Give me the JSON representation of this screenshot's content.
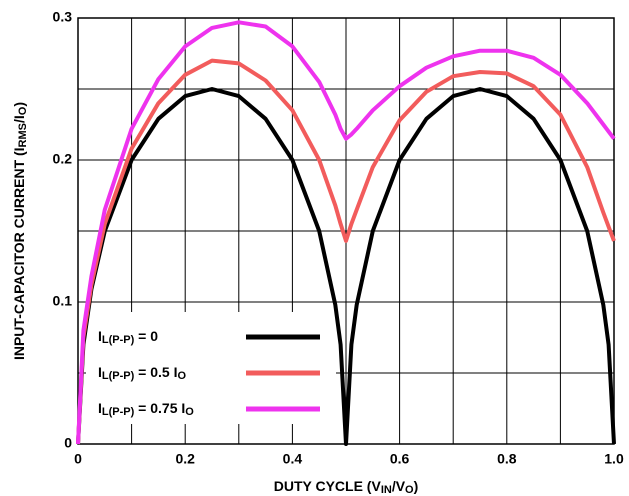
{
  "chart_data": {
    "type": "line",
    "xlabel": [
      "DUTY CYCLE (V",
      "IN",
      "/V",
      "O",
      ")"
    ],
    "ylabel": [
      "INPUT-CAPACITOR CURRENT (I",
      "RMS",
      "/I",
      "O",
      ")"
    ],
    "x": [
      0,
      0.01,
      0.025,
      0.05,
      0.1,
      0.15,
      0.2,
      0.25,
      0.3,
      0.35,
      0.4,
      0.45,
      0.48,
      0.49,
      0.5,
      0.51,
      0.52,
      0.55,
      0.6,
      0.65,
      0.7,
      0.75,
      0.8,
      0.85,
      0.9,
      0.95,
      0.98,
      0.99,
      1.0
    ],
    "series": [
      {
        "name": [
          "I",
          "L(P-P)",
          " = 0"
        ],
        "color": "#000000",
        "values": [
          0,
          0.07,
          0.109,
          0.15,
          0.2,
          0.229,
          0.245,
          0.25,
          0.245,
          0.229,
          0.2,
          0.15,
          0.098,
          0.07,
          0,
          0.07,
          0.098,
          0.15,
          0.2,
          0.229,
          0.245,
          0.25,
          0.245,
          0.229,
          0.2,
          0.15,
          0.098,
          0.07,
          0
        ]
      },
      {
        "name": [
          "I",
          "L(P-P)",
          " = 0.5 I",
          "O"
        ],
        "color": "#f25c5c",
        "values": [
          0,
          0.075,
          0.112,
          0.155,
          0.208,
          0.24,
          0.26,
          0.27,
          0.268,
          0.256,
          0.235,
          0.2,
          0.168,
          0.155,
          0.143,
          0.155,
          0.165,
          0.195,
          0.228,
          0.248,
          0.259,
          0.262,
          0.261,
          0.252,
          0.232,
          0.195,
          0.163,
          0.153,
          0.143
        ]
      },
      {
        "name": [
          "I",
          "L(P-P)",
          " = 0.75 I",
          "O"
        ],
        "color": "#ee33ee",
        "values": [
          0,
          0.08,
          0.118,
          0.165,
          0.222,
          0.257,
          0.28,
          0.293,
          0.297,
          0.294,
          0.28,
          0.255,
          0.232,
          0.222,
          0.215,
          0.218,
          0.222,
          0.235,
          0.252,
          0.265,
          0.273,
          0.277,
          0.277,
          0.272,
          0.26,
          0.24,
          0.225,
          0.22,
          0.215
        ]
      }
    ],
    "xlim": [
      0,
      1
    ],
    "ylim": [
      0,
      0.3
    ],
    "xticks": [
      0,
      0.2,
      0.4,
      0.6,
      0.8,
      {
        "value": 1,
        "label": "1.0"
      }
    ],
    "yticks": [
      0,
      0.1,
      0.2,
      0.3
    ],
    "xminor": [
      0.1,
      0.3,
      0.5,
      0.7,
      0.9
    ],
    "yminor": [
      0.05,
      0.15,
      0.25
    ],
    "grid": true,
    "legend": "lower left"
  }
}
